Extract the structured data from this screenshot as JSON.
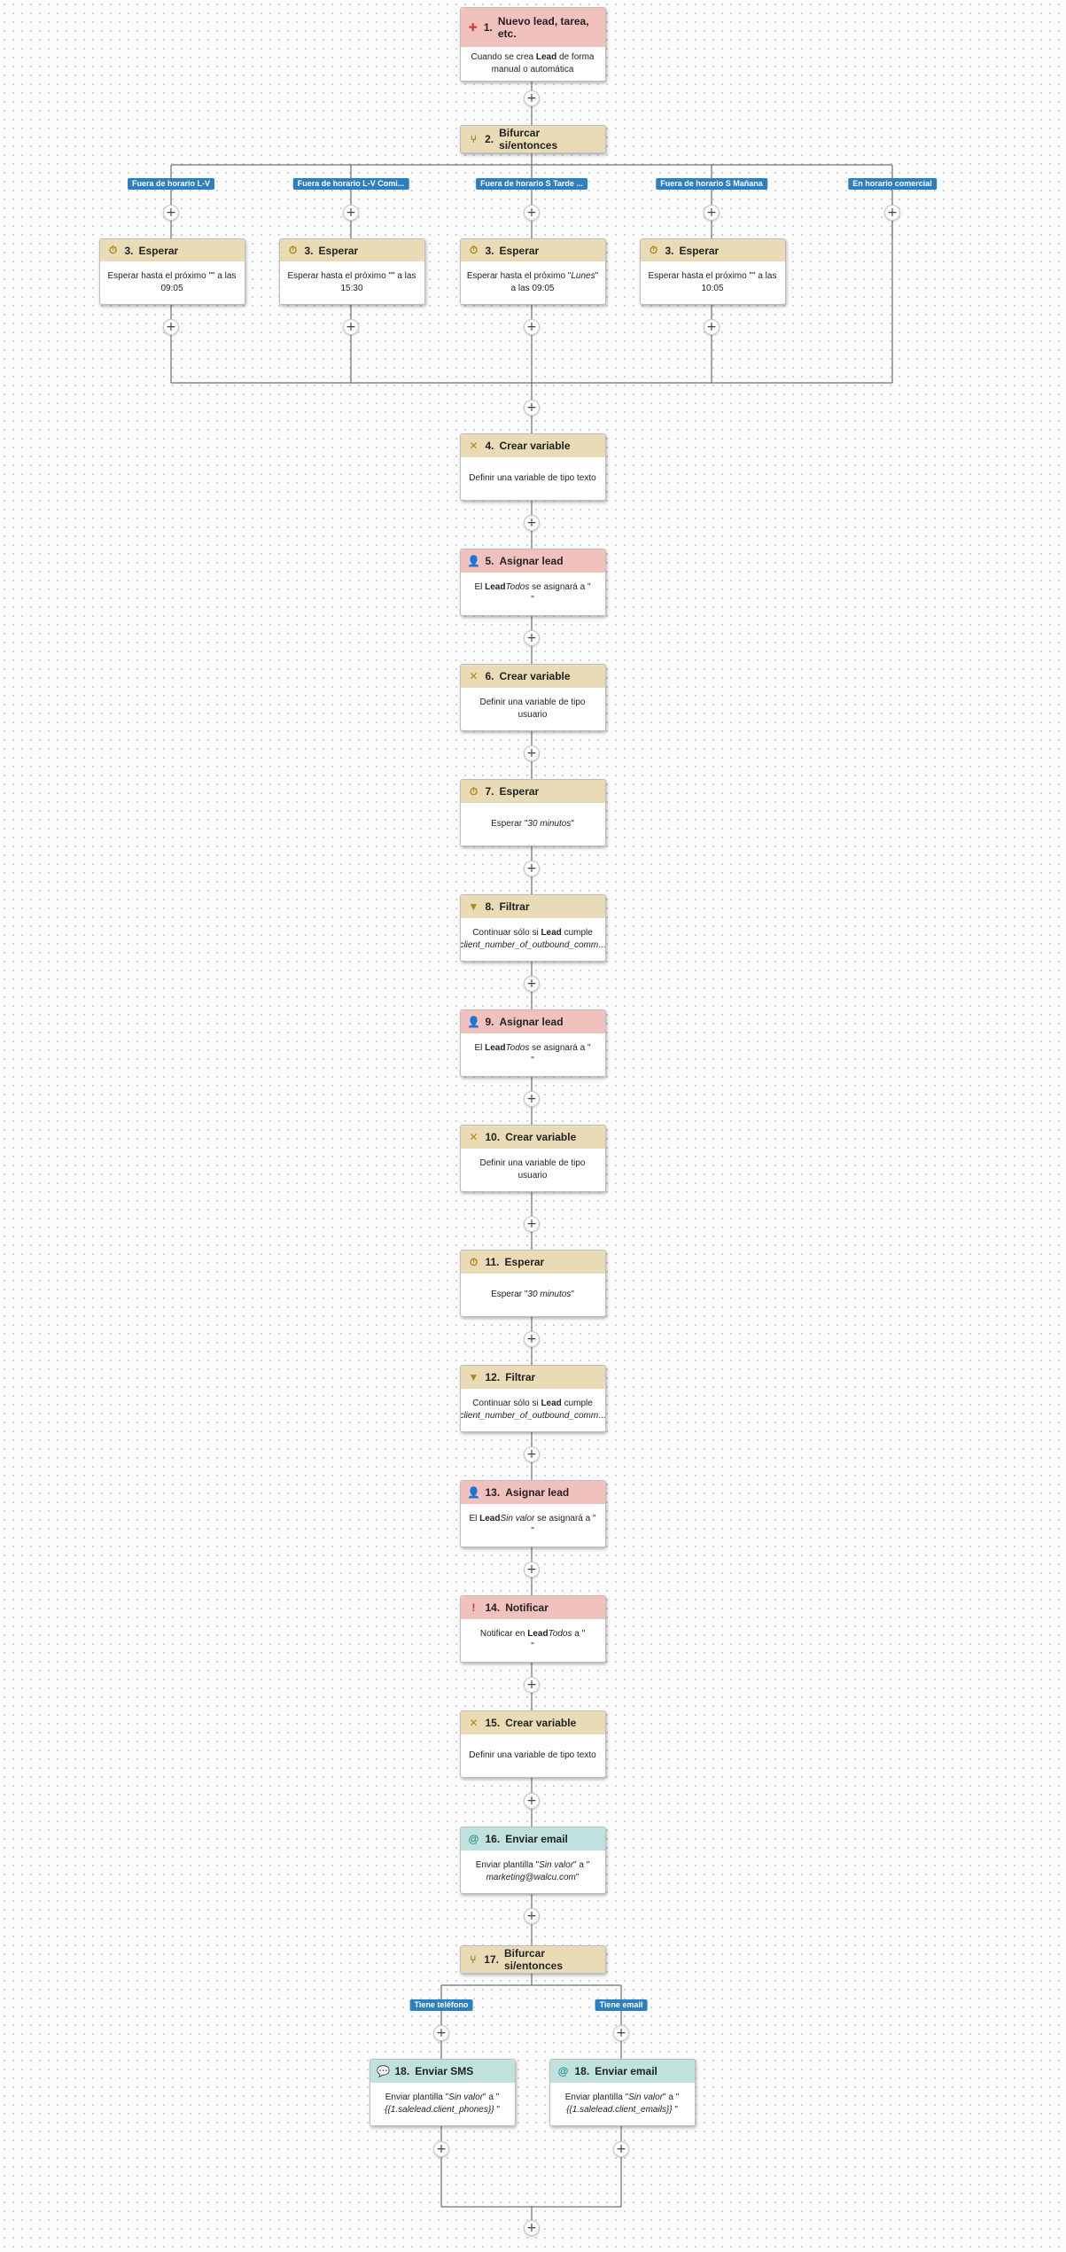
{
  "nodes": {
    "n1": {
      "number": "1.",
      "title": "Nuevo lead, tarea, etc.",
      "body": {
        "pre": "Cuando se crea ",
        "bold": "Lead",
        "post": " de forma manual o automática"
      },
      "icon": "plus-icon"
    },
    "n2": {
      "number": "2.",
      "title": "Bifurcar si/entonces",
      "icon": "branch-icon"
    },
    "n3a": {
      "number": "3.",
      "title": "Esperar",
      "body": {
        "pre": "Esperar hasta el próximo \"\" a las 09:05"
      },
      "icon": "timer-icon"
    },
    "n3b": {
      "number": "3.",
      "title": "Esperar",
      "body": {
        "pre": "Esperar hasta el próximo \"\" a las 15:30"
      },
      "icon": "timer-icon"
    },
    "n3c": {
      "number": "3.",
      "title": "Esperar",
      "body": {
        "pre": "Esperar hasta el próximo \"",
        "ital": "Lunes",
        "post": "\" a las 09:05"
      },
      "icon": "timer-icon"
    },
    "n3d": {
      "number": "3.",
      "title": "Esperar",
      "body": {
        "pre": "Esperar hasta el próximo \"\" a las 10:05"
      },
      "icon": "timer-icon"
    },
    "n4": {
      "number": "4.",
      "title": "Crear variable",
      "body": {
        "pre": "Definir una variable de tipo texto"
      },
      "icon": "variable-icon"
    },
    "n5": {
      "number": "5.",
      "title": "Asignar lead",
      "body": {
        "pre": "El ",
        "bold": "Lead",
        "post": " se asignará a \"",
        "ital": "Todos",
        "post2": "\""
      },
      "icon": "user-icon"
    },
    "n6": {
      "number": "6.",
      "title": "Crear variable",
      "body": {
        "pre": "Definir una variable de tipo usuario"
      },
      "icon": "variable-icon"
    },
    "n7": {
      "number": "7.",
      "title": "Esperar",
      "body": {
        "pre": "Esperar \"",
        "ital": "30 minutos",
        "post": "\""
      },
      "icon": "timer-icon"
    },
    "n8": {
      "number": "8.",
      "title": "Filtrar",
      "body": {
        "pre": "Continuar sólo si ",
        "bold": "Lead",
        "post": " cumple",
        "ital2": "client_number_of_outbound_comm",
        "post2": "..."
      },
      "icon": "filter-icon"
    },
    "n9": {
      "number": "9.",
      "title": "Asignar lead",
      "body": {
        "pre": "El ",
        "bold": "Lead",
        "post": " se asignará a \"",
        "ital": "Todos",
        "post2": "\""
      },
      "icon": "user-icon"
    },
    "n10": {
      "number": "10.",
      "title": "Crear variable",
      "body": {
        "pre": "Definir una variable de tipo usuario"
      },
      "icon": "variable-icon"
    },
    "n11": {
      "number": "11.",
      "title": "Esperar",
      "body": {
        "pre": "Esperar \"",
        "ital": "30 minutos",
        "post": "\""
      },
      "icon": "timer-icon"
    },
    "n12": {
      "number": "12.",
      "title": "Filtrar",
      "body": {
        "pre": "Continuar sólo si ",
        "bold": "Lead",
        "post": " cumple",
        "ital2": "client_number_of_outbound_comm",
        "post2": "..."
      },
      "icon": "filter-icon"
    },
    "n13": {
      "number": "13.",
      "title": "Asignar lead",
      "body": {
        "pre": "El ",
        "bold": "Lead",
        "post": " se asignará a \"",
        "ital": "Sin valor",
        "post2": "\""
      },
      "icon": "user-icon"
    },
    "n14": {
      "number": "14.",
      "title": "Notificar",
      "body": {
        "pre": "Notificar en ",
        "bold": "Lead",
        "post": " a \"",
        "ital": "Todos",
        "post2": "\""
      },
      "icon": "alert-icon"
    },
    "n15": {
      "number": "15.",
      "title": "Crear variable",
      "body": {
        "pre": "Definir una variable de tipo texto"
      },
      "icon": "variable-icon"
    },
    "n16": {
      "number": "16.",
      "title": "Enviar email",
      "body": {
        "pre": "Enviar plantilla \"",
        "ital": "Sin valor",
        "post": "\" a \"",
        "ital2": "marketing@walcu.com",
        "post2": "\""
      },
      "icon": "at-icon"
    },
    "n17": {
      "number": "17.",
      "title": "Bifurcar si/entonces",
      "icon": "branch-icon"
    },
    "n18a": {
      "number": "18.",
      "title": "Enviar SMS",
      "body": {
        "pre": "Enviar plantilla \"",
        "ital": "Sin valor",
        "post": "\" a \"",
        "ital2": "{{1.salelead.client_phones}}",
        "post2": " \""
      },
      "icon": "chat-icon"
    },
    "n18b": {
      "number": "18.",
      "title": "Enviar email",
      "body": {
        "pre": "Enviar plantilla \"",
        "ital": "Sin valor",
        "post": "\" a \"",
        "ital2": "{{1.salelead.client_emails}}",
        "post2": " \""
      },
      "icon": "at-icon"
    }
  },
  "branch_labels": {
    "b1": "Fuera de horario L-V",
    "b2": "Fuera de horario L-V Comi...",
    "b3": "Fuera de horario S Tarde ...",
    "b4": "Fuera de horario S Mañana",
    "b5": "En horario comercial",
    "c1": "Tiene teléfono",
    "c2": "Tiene email"
  },
  "add_step_symbol": "+",
  "colors": {
    "trigger_header": "#f1c2bd",
    "logic_header": "#e8dbb5",
    "action_pink_header": "#f1c2bd",
    "message_header": "#bfe2df",
    "branch_label": "#2c7fc1",
    "connector": "#6f6f6f"
  }
}
